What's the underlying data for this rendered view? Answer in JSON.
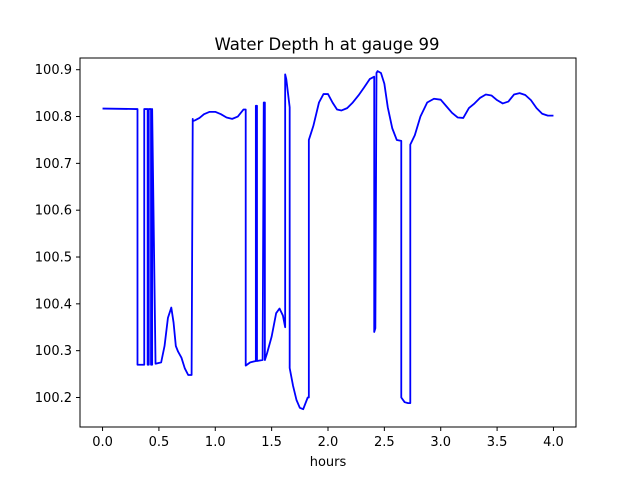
{
  "chart_data": {
    "type": "line",
    "title": "Water Depth h at gauge 99",
    "xlabel": "hours",
    "ylabel": "",
    "xlim": [
      -0.2,
      4.2
    ],
    "ylim": [
      100.137,
      100.925
    ],
    "x_ticks": [
      0.0,
      0.5,
      1.0,
      1.5,
      2.0,
      2.5,
      3.0,
      3.5,
      4.0
    ],
    "x_tick_labels": [
      "0.0",
      "0.5",
      "1.0",
      "1.5",
      "2.0",
      "2.5",
      "3.0",
      "3.5",
      "4.0"
    ],
    "y_ticks": [
      100.2,
      100.3,
      100.4,
      100.5,
      100.6,
      100.7,
      100.8,
      100.9
    ],
    "y_tick_labels": [
      "100.2",
      "100.3",
      "100.4",
      "100.5",
      "100.6",
      "100.7",
      "100.8",
      "100.9"
    ],
    "grid": false,
    "series": [
      {
        "color": "#0000ff",
        "x": [
          0.0,
          0.3,
          0.31,
          0.31,
          0.37,
          0.37,
          0.4,
          0.4,
          0.41,
          0.41,
          0.43,
          0.43,
          0.44,
          0.44,
          0.47,
          0.52,
          0.55,
          0.58,
          0.61,
          0.63,
          0.65,
          0.67,
          0.7,
          0.73,
          0.76,
          0.79,
          0.8,
          0.8,
          0.82,
          0.86,
          0.9,
          0.95,
          1.0,
          1.05,
          1.1,
          1.15,
          1.2,
          1.25,
          1.27,
          1.27,
          1.31,
          1.36,
          1.36,
          1.37,
          1.37,
          1.42,
          1.43,
          1.44,
          1.44,
          1.46,
          1.5,
          1.54,
          1.57,
          1.6,
          1.62,
          1.62,
          1.63,
          1.66,
          1.66,
          1.69,
          1.72,
          1.75,
          1.78,
          1.82,
          1.83,
          1.83,
          1.87,
          1.92,
          1.96,
          2.0,
          2.04,
          2.08,
          2.12,
          2.17,
          2.22,
          2.27,
          2.32,
          2.37,
          2.41,
          2.41,
          2.42,
          2.43,
          2.43,
          2.44,
          2.47,
          2.5,
          2.53,
          2.57,
          2.61,
          2.65,
          2.65,
          2.68,
          2.71,
          2.73,
          2.73,
          2.77,
          2.82,
          2.88,
          2.94,
          3.0,
          3.05,
          3.1,
          3.15,
          3.2,
          3.25,
          3.3,
          3.35,
          3.4,
          3.45,
          3.5,
          3.55,
          3.6,
          3.65,
          3.7,
          3.75,
          3.8,
          3.85,
          3.9,
          3.95,
          4.0
        ],
        "y": [
          100.817,
          100.816,
          100.816,
          100.27,
          100.27,
          100.816,
          100.816,
          100.27,
          100.27,
          100.816,
          100.816,
          100.27,
          100.27,
          100.816,
          100.272,
          100.275,
          100.31,
          100.37,
          100.392,
          100.36,
          100.31,
          100.298,
          100.285,
          100.262,
          100.248,
          100.248,
          100.795,
          100.79,
          100.792,
          100.797,
          100.805,
          100.81,
          100.81,
          100.805,
          100.798,
          100.795,
          100.8,
          100.815,
          100.815,
          100.268,
          100.275,
          100.278,
          100.823,
          100.823,
          100.278,
          100.28,
          100.83,
          100.83,
          100.28,
          100.295,
          100.33,
          100.38,
          100.39,
          100.375,
          100.35,
          100.89,
          100.88,
          100.82,
          100.263,
          100.225,
          100.195,
          100.178,
          100.175,
          100.2,
          100.2,
          100.75,
          100.78,
          100.83,
          100.848,
          100.848,
          100.83,
          100.815,
          100.813,
          100.818,
          100.83,
          100.845,
          100.862,
          100.88,
          100.885,
          100.34,
          100.348,
          100.88,
          100.893,
          100.897,
          100.893,
          100.87,
          100.82,
          100.775,
          100.75,
          100.748,
          100.2,
          100.19,
          100.188,
          100.188,
          100.74,
          100.76,
          100.8,
          100.83,
          100.838,
          100.836,
          100.822,
          100.808,
          100.798,
          100.797,
          100.818,
          100.828,
          100.84,
          100.847,
          100.845,
          100.835,
          100.828,
          100.832,
          100.847,
          100.85,
          100.846,
          100.835,
          100.818,
          100.806,
          100.802,
          100.802
        ]
      }
    ]
  }
}
